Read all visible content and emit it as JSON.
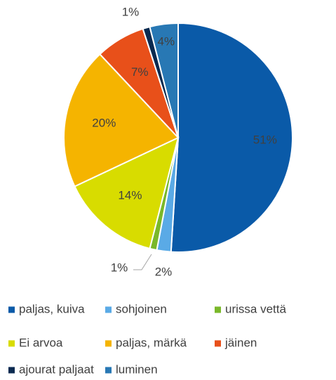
{
  "chart_data": {
    "type": "pie",
    "categories": [
      "paljas, kuiva",
      "sohjoinen",
      "urissa vettä",
      "Ei arvoa",
      "paljas, märkä",
      "jäinen",
      "ajourat paljaat",
      "luminen"
    ],
    "values": [
      51,
      2,
      1,
      14,
      20,
      7,
      1,
      4
    ],
    "value_labels": [
      "51%",
      "2%",
      "1%",
      "14%",
      "20%",
      "7%",
      "1%",
      "4%"
    ],
    "colors": [
      "#0a5aa8",
      "#5aaae6",
      "#7ab82a",
      "#d8dc00",
      "#f5b400",
      "#e8501a",
      "#0a2a50",
      "#2878b4"
    ]
  }
}
